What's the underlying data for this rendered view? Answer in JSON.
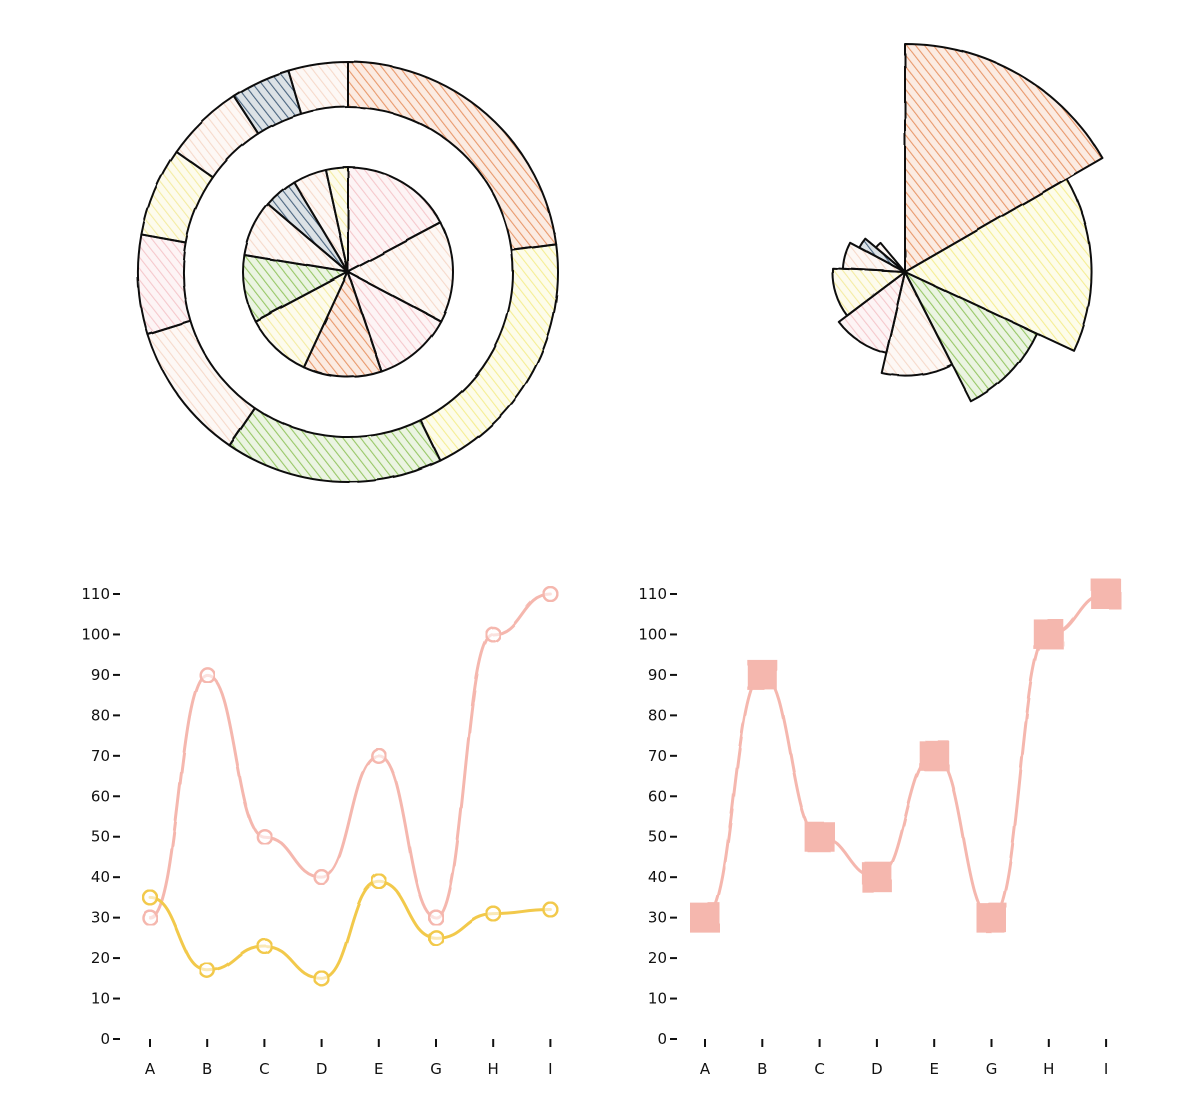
{
  "chart_data": [
    {
      "type": "pie",
      "variant": "nested-donut",
      "title": "",
      "rings": [
        {
          "name": "outer",
          "values": [
            30,
            26,
            22,
            14,
            10,
            9,
            8,
            6,
            6
          ],
          "colors": [
            "#e8905f",
            "#f5ee8c",
            "#8fc45a",
            "#f7d7c7",
            "#f5c5c8",
            "#f4ec9b",
            "#f7d7c7",
            "#3b5875",
            "#f7d7c7"
          ]
        },
        {
          "name": "inner",
          "values": [
            10,
            9,
            7,
            7,
            6,
            6,
            5,
            3,
            3,
            2
          ],
          "colors": [
            "#f5c5c8",
            "#f7d7c7",
            "#f5c5c8",
            "#e8905f",
            "#f4ec9b",
            "#8fc45a",
            "#f7d7c7",
            "#3b5875",
            "#f7d7c7",
            "#f4ec9b"
          ]
        }
      ]
    },
    {
      "type": "pie",
      "variant": "rose",
      "title": "",
      "slices": [
        {
          "value": 110,
          "angle": 60,
          "color": "#e8905f"
        },
        {
          "value": 90,
          "angle": 55,
          "color": "#f5ee8c"
        },
        {
          "value": 70,
          "angle": 38,
          "color": "#8fc45a"
        },
        {
          "value": 50,
          "angle": 40,
          "color": "#f7d7c7"
        },
        {
          "value": 40,
          "angle": 40,
          "color": "#f5c5c8"
        },
        {
          "value": 35,
          "angle": 40,
          "color": "#f4ec9b"
        },
        {
          "value": 30,
          "angle": 25,
          "color": "#f7d7c7"
        },
        {
          "value": 25,
          "angle": 12,
          "color": "#3b5875"
        },
        {
          "value": 18,
          "angle": 10,
          "color": "#f7d7c7"
        }
      ]
    },
    {
      "type": "line",
      "title": "",
      "categories": [
        "A",
        "B",
        "C",
        "D",
        "E",
        "G",
        "H",
        "I"
      ],
      "ylim": [
        0,
        110
      ],
      "yticks": [
        "0",
        "10",
        "20",
        "30",
        "40",
        "50",
        "60",
        "70",
        "80",
        "90",
        "100",
        "110"
      ],
      "series": [
        {
          "values": [
            30,
            90,
            50,
            40,
            70,
            30,
            100,
            110
          ],
          "color": "#f5b7ae",
          "marker": "circle"
        },
        {
          "values": [
            35,
            17,
            23,
            15,
            39,
            25,
            31,
            32
          ],
          "color": "#f2c94c",
          "marker": "circle"
        }
      ]
    },
    {
      "type": "line",
      "title": "",
      "categories": [
        "A",
        "B",
        "C",
        "D",
        "E",
        "G",
        "H",
        "I"
      ],
      "ylim": [
        0,
        110
      ],
      "yticks": [
        "0",
        "10",
        "20",
        "30",
        "40",
        "50",
        "60",
        "70",
        "80",
        "90",
        "100",
        "110"
      ],
      "series": [
        {
          "values": [
            30,
            90,
            50,
            40,
            70,
            30,
            100,
            110
          ],
          "color": "#f5b7ae",
          "marker": "square"
        }
      ]
    }
  ]
}
